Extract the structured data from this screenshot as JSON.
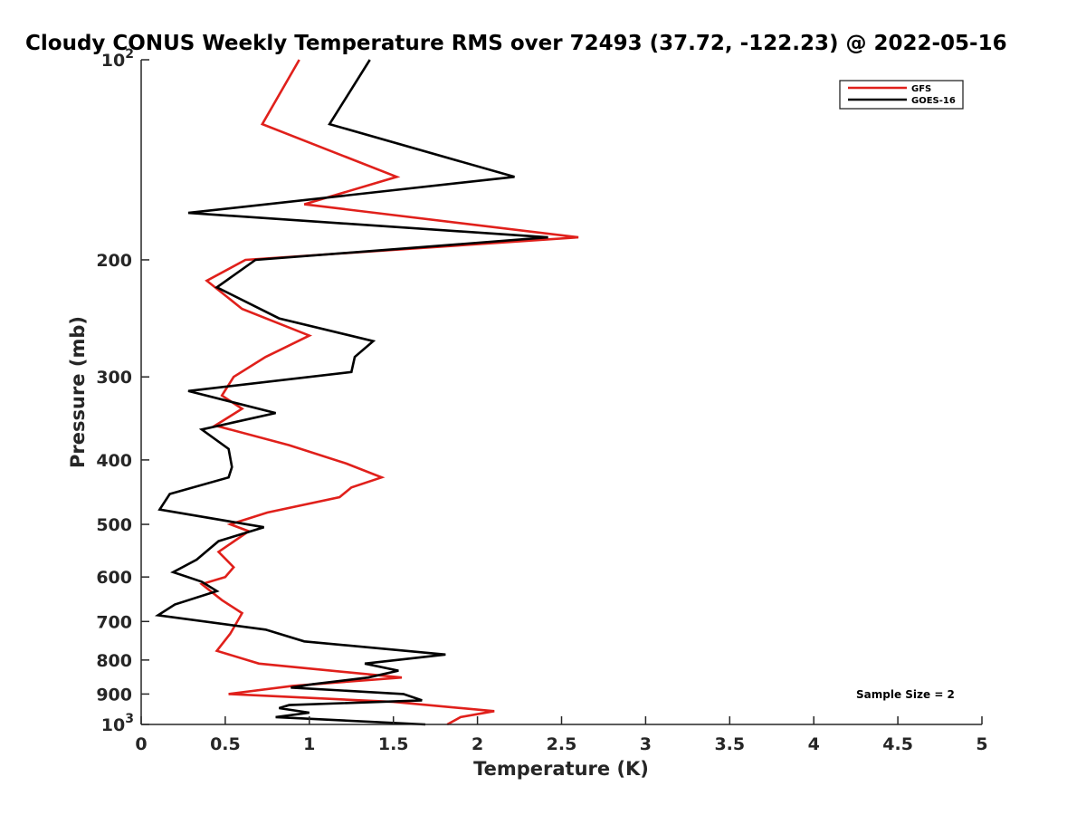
{
  "chart_data": {
    "type": "line",
    "title": "Cloudy CONUS Weekly Temperature RMS over 72493 (37.72, -122.23) @ 2022-05-16",
    "xlabel": "Temperature (K)",
    "ylabel": "Pressure (mb)",
    "xlim": [
      0,
      5
    ],
    "ylim": [
      100,
      1000
    ],
    "y_scale": "log",
    "y_reversed": true,
    "x_ticks": [
      "0",
      "0.5",
      "1",
      "1.5",
      "2",
      "2.5",
      "3",
      "3.5",
      "4",
      "4.5",
      "5"
    ],
    "x_tick_values": [
      0,
      0.5,
      1,
      1.5,
      2,
      2.5,
      3,
      3.5,
      4,
      4.5,
      5
    ],
    "y_tick_labels": [
      {
        "value": 100,
        "base": "10",
        "exp": "2"
      },
      {
        "value": 200,
        "base": "200",
        "exp": ""
      },
      {
        "value": 300,
        "base": "300",
        "exp": ""
      },
      {
        "value": 400,
        "base": "400",
        "exp": ""
      },
      {
        "value": 500,
        "base": "500",
        "exp": ""
      },
      {
        "value": 600,
        "base": "600",
        "exp": ""
      },
      {
        "value": 700,
        "base": "700",
        "exp": ""
      },
      {
        "value": 800,
        "base": "800",
        "exp": ""
      },
      {
        "value": 900,
        "base": "900",
        "exp": ""
      },
      {
        "value": 1000,
        "base": "10",
        "exp": "3"
      }
    ],
    "grid": false,
    "legend_position": "top-right",
    "annotation": "Sample Size = 2",
    "series": [
      {
        "name": "GFS",
        "color": "#e0201b",
        "points": [
          [
            0.94,
            100
          ],
          [
            0.72,
            125
          ],
          [
            1.52,
            150
          ],
          [
            0.97,
            165
          ],
          [
            2.6,
            185
          ],
          [
            0.62,
            200
          ],
          [
            0.39,
            215
          ],
          [
            0.6,
            237
          ],
          [
            1.0,
            260
          ],
          [
            0.74,
            280
          ],
          [
            0.55,
            300
          ],
          [
            0.48,
            320
          ],
          [
            0.6,
            335
          ],
          [
            0.44,
            355
          ],
          [
            0.88,
            380
          ],
          [
            1.22,
            405
          ],
          [
            1.43,
            425
          ],
          [
            1.25,
            440
          ],
          [
            1.18,
            455
          ],
          [
            0.75,
            480
          ],
          [
            0.53,
            500
          ],
          [
            0.64,
            512
          ],
          [
            0.46,
            550
          ],
          [
            0.55,
            580
          ],
          [
            0.5,
            600
          ],
          [
            0.36,
            615
          ],
          [
            0.48,
            650
          ],
          [
            0.6,
            680
          ],
          [
            0.53,
            730
          ],
          [
            0.45,
            775
          ],
          [
            0.7,
            810
          ],
          [
            1.55,
            850
          ],
          [
            0.9,
            875
          ],
          [
            0.52,
            900
          ],
          [
            1.5,
            925
          ],
          [
            2.1,
            955
          ],
          [
            1.9,
            975
          ],
          [
            1.82,
            1000
          ]
        ]
      },
      {
        "name": "GOES-16",
        "color": "#000000",
        "points": [
          [
            1.36,
            100
          ],
          [
            1.12,
            125
          ],
          [
            2.22,
            150
          ],
          [
            0.28,
            170
          ],
          [
            2.42,
            185
          ],
          [
            0.68,
            200
          ],
          [
            0.45,
            220
          ],
          [
            0.82,
            245
          ],
          [
            1.38,
            265
          ],
          [
            1.27,
            280
          ],
          [
            1.25,
            295
          ],
          [
            0.28,
            315
          ],
          [
            0.8,
            340
          ],
          [
            0.36,
            360
          ],
          [
            0.52,
            385
          ],
          [
            0.54,
            410
          ],
          [
            0.52,
            425
          ],
          [
            0.17,
            450
          ],
          [
            0.11,
            475
          ],
          [
            0.73,
            505
          ],
          [
            0.46,
            530
          ],
          [
            0.33,
            565
          ],
          [
            0.19,
            590
          ],
          [
            0.36,
            610
          ],
          [
            0.45,
            630
          ],
          [
            0.2,
            660
          ],
          [
            0.1,
            685
          ],
          [
            0.74,
            720
          ],
          [
            0.97,
            750
          ],
          [
            1.81,
            785
          ],
          [
            1.33,
            810
          ],
          [
            1.53,
            830
          ],
          [
            1.35,
            850
          ],
          [
            1.02,
            870
          ],
          [
            0.89,
            880
          ],
          [
            1.56,
            900
          ],
          [
            1.67,
            920
          ],
          [
            0.88,
            935
          ],
          [
            0.82,
            945
          ],
          [
            1.0,
            960
          ],
          [
            0.8,
            975
          ],
          [
            1.69,
            1000
          ]
        ]
      }
    ]
  }
}
